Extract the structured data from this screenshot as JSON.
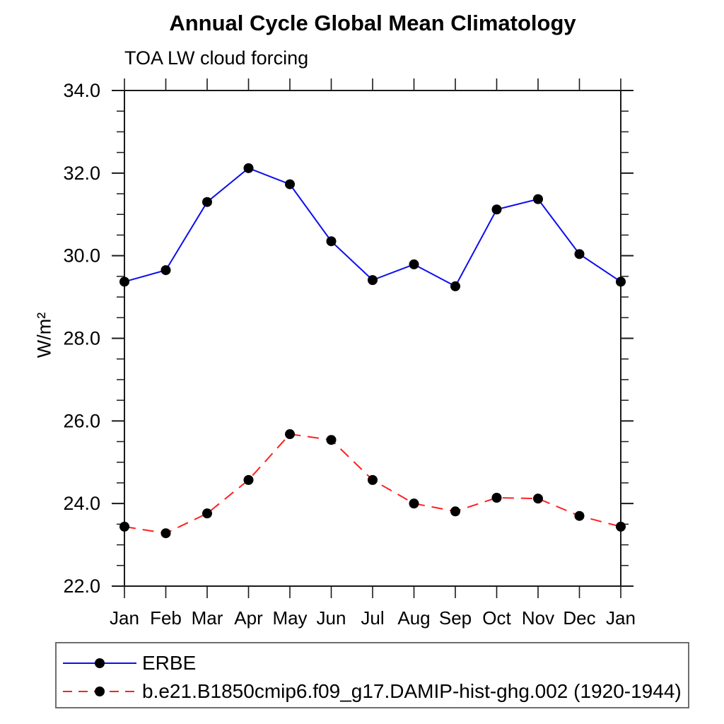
{
  "page": {
    "background_color": "#ffffff",
    "text_color": "#000000"
  },
  "chart_data": {
    "type": "line",
    "title": "Annual Cycle Global Mean Climatology",
    "subtitle": "TOA LW cloud forcing",
    "ylabel": "W/m²",
    "xlabel": "",
    "x_categories": [
      "Jan",
      "Feb",
      "Mar",
      "Apr",
      "May",
      "Jun",
      "Jul",
      "Aug",
      "Sep",
      "Oct",
      "Nov",
      "Dec",
      "Jan"
    ],
    "ylim": [
      22.0,
      34.0
    ],
    "ytick_major_interval": 2.0,
    "ytick_minor_interval": 0.5,
    "ytick_labels": [
      "22.0",
      "24.0",
      "26.0",
      "28.0",
      "30.0",
      "32.0",
      "34.0"
    ],
    "grid": false,
    "frame": "box with outward ticks on all four sides",
    "legend_position": "bottom-left boxed",
    "axis_color": "#1a1a1a",
    "series": [
      {
        "name": "ERBE",
        "color": "#0d0df0",
        "line_style": "solid",
        "marker": "filled-circle",
        "marker_color": "#000000",
        "values": [
          29.37,
          29.65,
          31.3,
          32.12,
          31.73,
          30.35,
          29.41,
          29.79,
          29.26,
          31.12,
          31.37,
          30.04,
          29.37
        ]
      },
      {
        "name": "b.e21.B1850cmip6.f09_g17.DAMIP-hist-ghg.002 (1920-1944)",
        "color": "#ff2020",
        "line_style": "dashed",
        "marker": "filled-circle",
        "marker_color": "#000000",
        "values": [
          23.44,
          23.28,
          23.76,
          24.57,
          25.68,
          25.54,
          24.57,
          24.0,
          23.81,
          24.14,
          24.12,
          23.7,
          23.44
        ]
      }
    ]
  }
}
